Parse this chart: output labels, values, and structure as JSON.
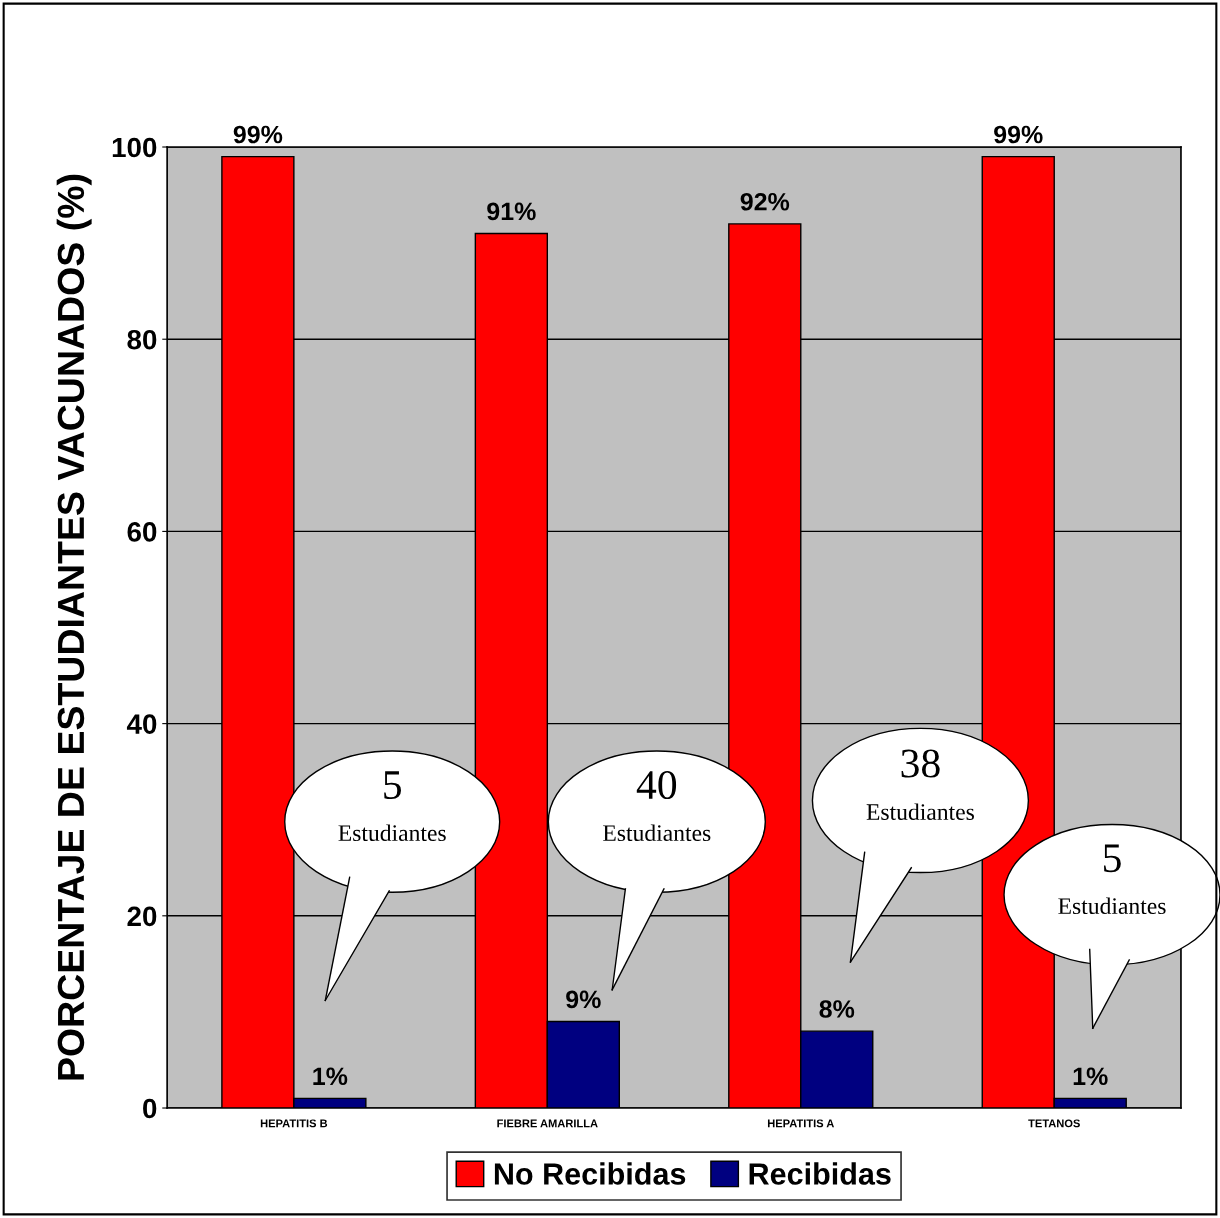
{
  "chart_data": {
    "type": "bar",
    "ylabel": "PORCENTAJE DE ESTUDIANTES VACUNADOS (%)",
    "categories": [
      "HEPATITIS B",
      "FIEBRE AMARILLA",
      "HEPATITIS A",
      "TETANOS"
    ],
    "series": [
      {
        "name": "No Recibidas",
        "color": "#ff0000",
        "values": [
          99,
          91,
          92,
          99
        ],
        "value_labels": [
          "99%",
          "91%",
          "92%",
          "99%"
        ]
      },
      {
        "name": "Recibidas",
        "color": "#000080",
        "values": [
          1,
          9,
          8,
          1
        ],
        "value_labels": [
          "1%",
          "9%",
          "8%",
          "1%"
        ]
      }
    ],
    "ylim": [
      0,
      100
    ],
    "yticks": [
      0,
      20,
      40,
      60,
      80,
      100
    ],
    "grid": "y",
    "legend": "bottom",
    "annotations": [
      "5\nEstudiantes",
      "40\nEstudiantes",
      "38\nEstudiantes",
      "5\nEstudiantes"
    ]
  }
}
